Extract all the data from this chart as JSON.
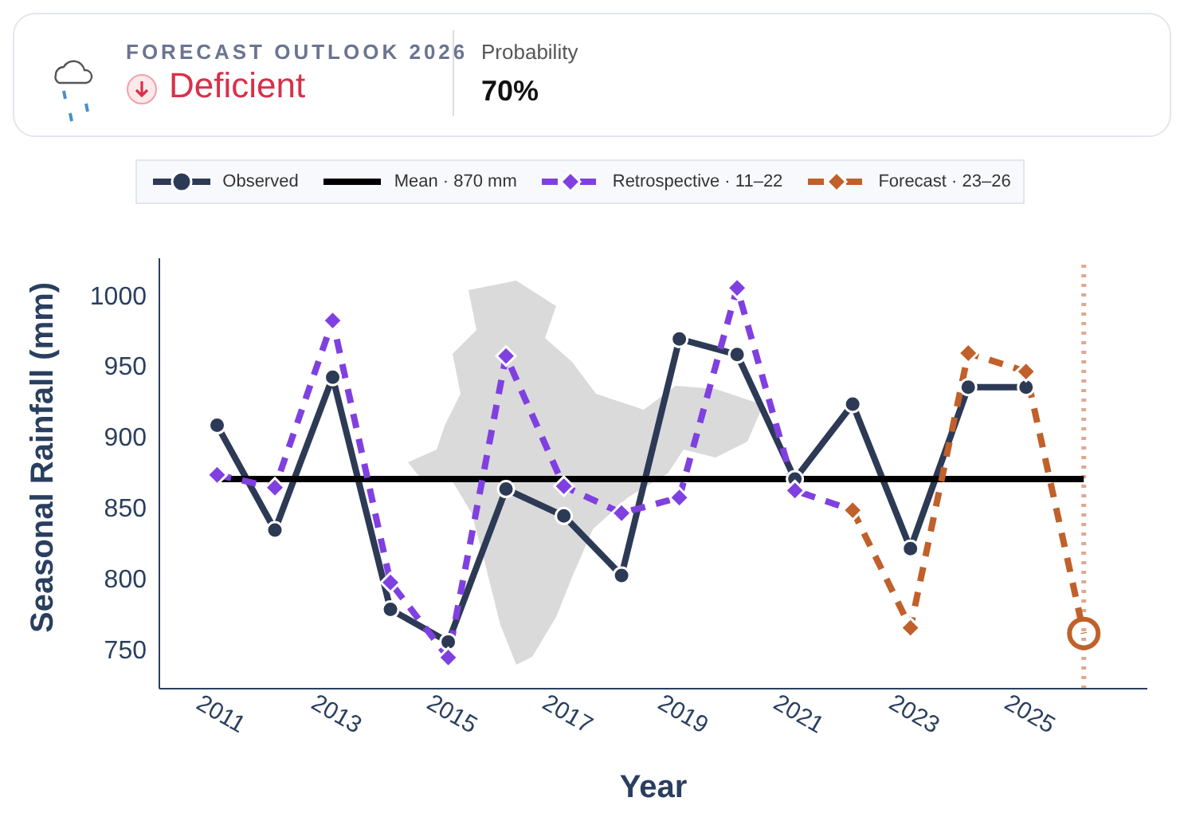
{
  "chart_data": {
    "type": "line",
    "title": "FORECAST OUTLOOK 2026",
    "subtitle": "Deficient",
    "annotations": [
      "Probability",
      "70%"
    ],
    "xlabel": "Year",
    "ylabel": "Seasonal Rainfall (mm)",
    "xlim": [
      2010,
      2027.1
    ],
    "xticks": [
      2011,
      2013,
      2015,
      2017,
      2019,
      2021,
      2023,
      2025
    ],
    "ylim": [
      722,
      1026
    ],
    "yticks": [
      750,
      800,
      850,
      900,
      950,
      1000
    ],
    "series": [
      {
        "name": "Observed",
        "color": "#2d3a55",
        "marker": "circle",
        "line_style": "solid",
        "x": [
          2011,
          2012,
          2013,
          2014,
          2015,
          2016,
          2017,
          2018,
          2019,
          2020,
          2021,
          2022,
          2023,
          2024,
          2025
        ],
        "values": [
          908,
          834,
          942,
          778,
          755,
          863,
          844,
          802,
          969,
          958,
          870,
          923,
          821,
          935,
          935
        ]
      },
      {
        "name": "Mean · 870 mm",
        "color": "#000000",
        "marker": "none",
        "line_style": "solid",
        "x": [
          2011,
          2026
        ],
        "values": [
          870,
          870
        ]
      },
      {
        "name": "Retrospective · 11–22",
        "color": "#8040e0",
        "marker": "diamond",
        "line_style": "dashed",
        "x": [
          2011,
          2012,
          2013,
          2014,
          2015,
          2016,
          2017,
          2018,
          2019,
          2020,
          2021,
          2022
        ],
        "values": [
          873,
          864,
          982,
          797,
          744,
          957,
          865,
          846,
          857,
          1005,
          862,
          848
        ]
      },
      {
        "name": "Forecast · 23–26",
        "color": "#c0602a",
        "marker": "diamond",
        "line_style": "dashed",
        "x": [
          2022,
          2023,
          2024,
          2025,
          2026
        ],
        "values": [
          848,
          765,
          959,
          946,
          761
        ]
      },
      {
        "type": "scatter",
        "color": "#c0602a",
        "marker": "circle",
        "x": [
          2026
        ],
        "values": [
          761
        ]
      }
    ],
    "ref_lines": [
      {
        "axis": "x",
        "value": 2026,
        "color": "#e0a890",
        "line_style": "dotted"
      }
    ],
    "grid": false,
    "legend": "top"
  }
}
